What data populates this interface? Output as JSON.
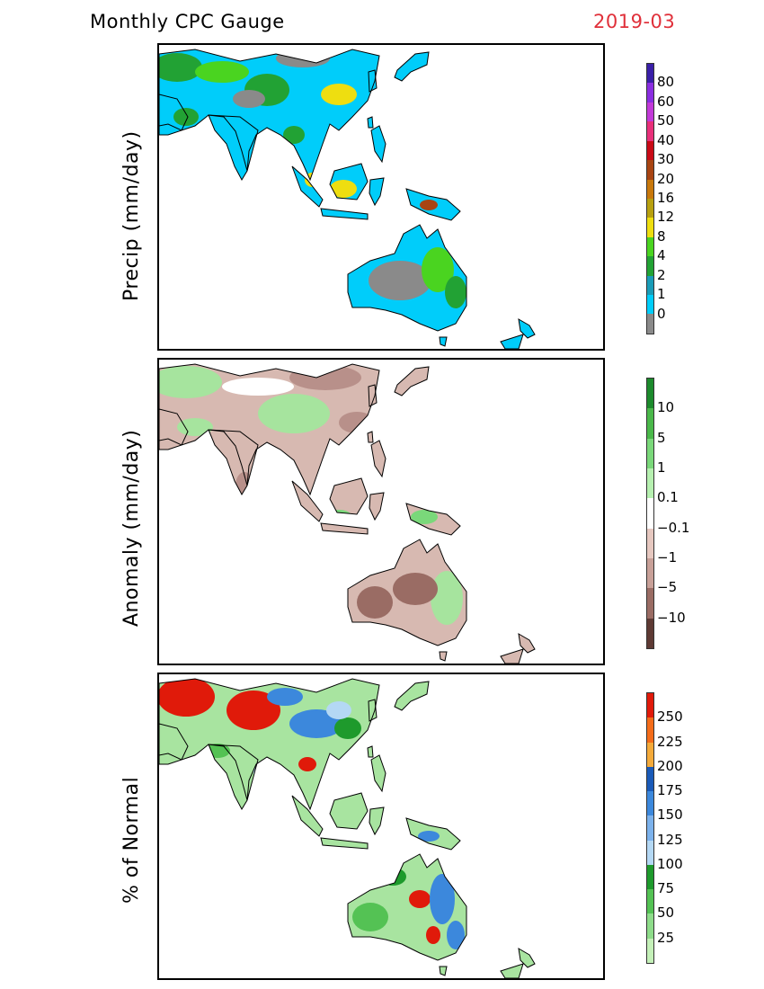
{
  "header": {
    "title": "Monthly CPC Gauge",
    "date": "2019-03",
    "date_color": "#e0303a"
  },
  "panels": [
    {
      "ylabel": "Precip (mm/day)",
      "legend_labels": [
        "80",
        "60",
        "50",
        "40",
        "30",
        "20",
        "16",
        "12",
        "8",
        "4",
        "2",
        "1",
        "0"
      ],
      "colors": [
        "#3a1fa8",
        "#8a2ee0",
        "#c23ad8",
        "#e8307a",
        "#c80a16",
        "#a84412",
        "#c8780c",
        "#b8a010",
        "#eede10",
        "#4ad420",
        "#22a234",
        "#1a9cb8",
        "#00cdfa",
        "#8a8a8a"
      ],
      "land": "#00cdfa",
      "patches": [
        "#22a234",
        "#4ad420",
        "#8a8a8a",
        "#eede10",
        "#1a9cb8",
        "#a84412"
      ]
    },
    {
      "ylabel": "Anomaly (mm/day)",
      "legend_labels": [
        "10",
        "5",
        "1",
        "0.1",
        "−0.1",
        "−1",
        "−5",
        "−10"
      ],
      "colors": [
        "#1c8a2c",
        "#4ab84a",
        "#7ad87a",
        "#b6f0b0",
        "#ffffff",
        "#e6c8c0",
        "#c8a098",
        "#9a6c64",
        "#5e3a34"
      ],
      "land": "#d7b9b1",
      "patches": [
        "#a6e49e",
        "#ffffff",
        "#b8908a",
        "#7ad87a",
        "#9a6c64"
      ]
    },
    {
      "ylabel": "% of Normal",
      "legend_labels": [
        "250",
        "225",
        "200",
        "175",
        "150",
        "125",
        "100",
        "75",
        "50",
        "25"
      ],
      "colors": [
        "#e01a0a",
        "#f46c1a",
        "#f4aa3a",
        "#1a5ab8",
        "#3c88dc",
        "#7cb2ec",
        "#b4d8f4",
        "#1e9a2c",
        "#54c254",
        "#8edc8a",
        "#c4f0b8"
      ],
      "land": "#a8e4a0",
      "patches": [
        "#e01a0a",
        "#3c88dc",
        "#1e9a2c",
        "#54c254",
        "#b4d8f4",
        "#f4aa3a"
      ]
    }
  ]
}
